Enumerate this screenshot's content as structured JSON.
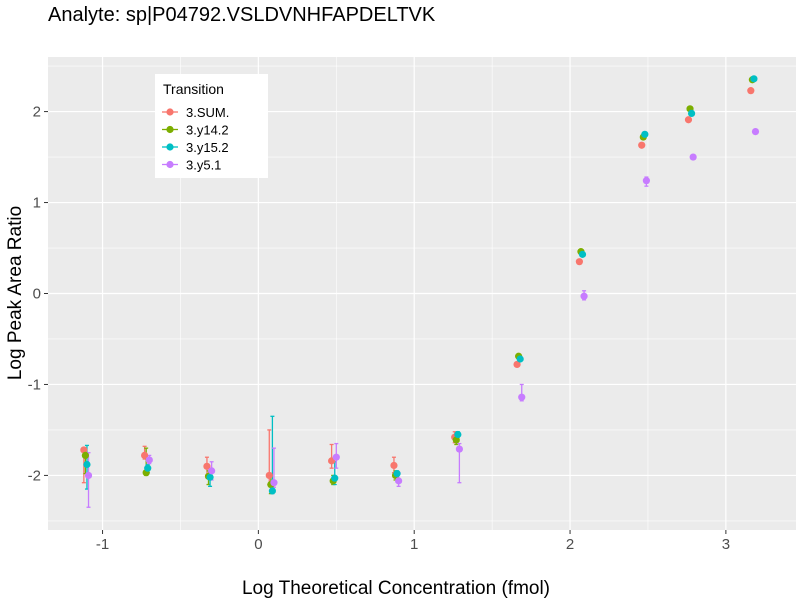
{
  "chart_data": {
    "type": "scatter",
    "title": "Analyte: sp|P04792.VSLDVNHFAPDELTVK",
    "xlabel": "Log Theoretical Concentration (fmol)",
    "ylabel": "Log Peak Area Ratio",
    "xlim": [
      -1.35,
      3.45
    ],
    "ylim": [
      -2.6,
      2.6
    ],
    "x_ticks": [
      -1,
      0,
      1,
      2,
      3
    ],
    "x_tick_labels": [
      "-1",
      "0",
      "1",
      "2",
      "3"
    ],
    "y_ticks": [
      -2,
      -1,
      0,
      1,
      2
    ],
    "y_tick_labels": [
      "-2",
      "-1",
      "0",
      "1",
      "2"
    ],
    "grid": true,
    "legend": {
      "title": "Transition",
      "position": "top-left"
    },
    "series": [
      {
        "name": "3.SUM.",
        "color": "#F8766D",
        "points": [
          {
            "x": -1.12,
            "y": -1.72,
            "lo": -2.08,
            "hi": -1.7
          },
          {
            "x": -0.73,
            "y": -1.78,
            "lo": -1.82,
            "hi": -1.68
          },
          {
            "x": -0.33,
            "y": -1.9,
            "lo": -2.0,
            "hi": -1.8
          },
          {
            "x": 0.07,
            "y": -2.0,
            "lo": -2.1,
            "hi": -1.5
          },
          {
            "x": 0.47,
            "y": -1.84,
            "lo": -1.92,
            "hi": -1.66
          },
          {
            "x": 0.87,
            "y": -1.89,
            "lo": -1.97,
            "hi": -1.8
          },
          {
            "x": 1.26,
            "y": -1.58,
            "lo": -1.64,
            "hi": -1.52
          },
          {
            "x": 1.66,
            "y": -0.78
          },
          {
            "x": 2.06,
            "y": 0.35
          },
          {
            "x": 2.46,
            "y": 1.63
          },
          {
            "x": 2.76,
            "y": 1.91
          },
          {
            "x": 3.16,
            "y": 2.23
          }
        ]
      },
      {
        "name": "3.y14.2",
        "color": "#7CAE00",
        "points": [
          {
            "x": -1.11,
            "y": -1.78,
            "lo": -1.98,
            "hi": -1.7
          },
          {
            "x": -0.72,
            "y": -1.97,
            "lo": -2.0,
            "hi": -1.7
          },
          {
            "x": -0.32,
            "y": -2.01,
            "lo": -2.1,
            "hi": -1.95
          },
          {
            "x": 0.08,
            "y": -2.1,
            "lo": -2.2,
            "hi": -2.0
          },
          {
            "x": 0.48,
            "y": -2.06,
            "lo": -2.1,
            "hi": -2.0
          },
          {
            "x": 0.88,
            "y": -2.0,
            "lo": -2.05,
            "hi": -1.95
          },
          {
            "x": 1.27,
            "y": -1.61,
            "lo": -1.66,
            "hi": -1.56
          },
          {
            "x": 1.67,
            "y": -0.69
          },
          {
            "x": 2.07,
            "y": 0.46
          },
          {
            "x": 2.47,
            "y": 1.72
          },
          {
            "x": 2.77,
            "y": 2.03
          },
          {
            "x": 3.17,
            "y": 2.35
          }
        ]
      },
      {
        "name": "3.y15.2",
        "color": "#00BFC4",
        "points": [
          {
            "x": -1.1,
            "y": -1.88,
            "lo": -2.15,
            "hi": -1.67
          },
          {
            "x": -0.71,
            "y": -1.92,
            "lo": -1.97,
            "hi": -1.88
          },
          {
            "x": -0.31,
            "y": -2.02,
            "lo": -2.12,
            "hi": -1.95
          },
          {
            "x": 0.09,
            "y": -2.17,
            "lo": -2.2,
            "hi": -1.35
          },
          {
            "x": 0.49,
            "y": -2.03,
            "lo": -2.1,
            "hi": -1.85
          },
          {
            "x": 0.89,
            "y": -1.98,
            "lo": -2.02,
            "hi": -1.95
          },
          {
            "x": 1.28,
            "y": -1.55,
            "lo": -1.58,
            "hi": -1.52
          },
          {
            "x": 1.68,
            "y": -0.72
          },
          {
            "x": 2.08,
            "y": 0.43
          },
          {
            "x": 2.48,
            "y": 1.75
          },
          {
            "x": 2.78,
            "y": 1.98
          },
          {
            "x": 3.18,
            "y": 2.36
          }
        ]
      },
      {
        "name": "3.y5.1",
        "color": "#C77CFF",
        "points": [
          {
            "x": -1.09,
            "y": -2.0,
            "lo": -2.35,
            "hi": -1.75
          },
          {
            "x": -0.7,
            "y": -1.83,
            "lo": -1.87,
            "hi": -1.78
          },
          {
            "x": -0.3,
            "y": -1.95,
            "lo": -2.05,
            "hi": -1.85
          },
          {
            "x": 0.1,
            "y": -2.08,
            "lo": -2.13,
            "hi": -1.7
          },
          {
            "x": 0.5,
            "y": -1.8,
            "lo": -1.92,
            "hi": -1.65
          },
          {
            "x": 0.9,
            "y": -2.06,
            "lo": -2.12,
            "hi": -1.97
          },
          {
            "x": 1.29,
            "y": -1.71,
            "lo": -2.08,
            "hi": -1.65
          },
          {
            "x": 1.69,
            "y": -1.14,
            "lo": -1.18,
            "hi": -1.0
          },
          {
            "x": 2.09,
            "y": -0.03,
            "lo": -0.07,
            "hi": 0.03
          },
          {
            "x": 2.49,
            "y": 1.24,
            "lo": 1.18,
            "hi": 1.28
          },
          {
            "x": 2.79,
            "y": 1.5
          },
          {
            "x": 3.19,
            "y": 1.78
          }
        ]
      }
    ]
  }
}
